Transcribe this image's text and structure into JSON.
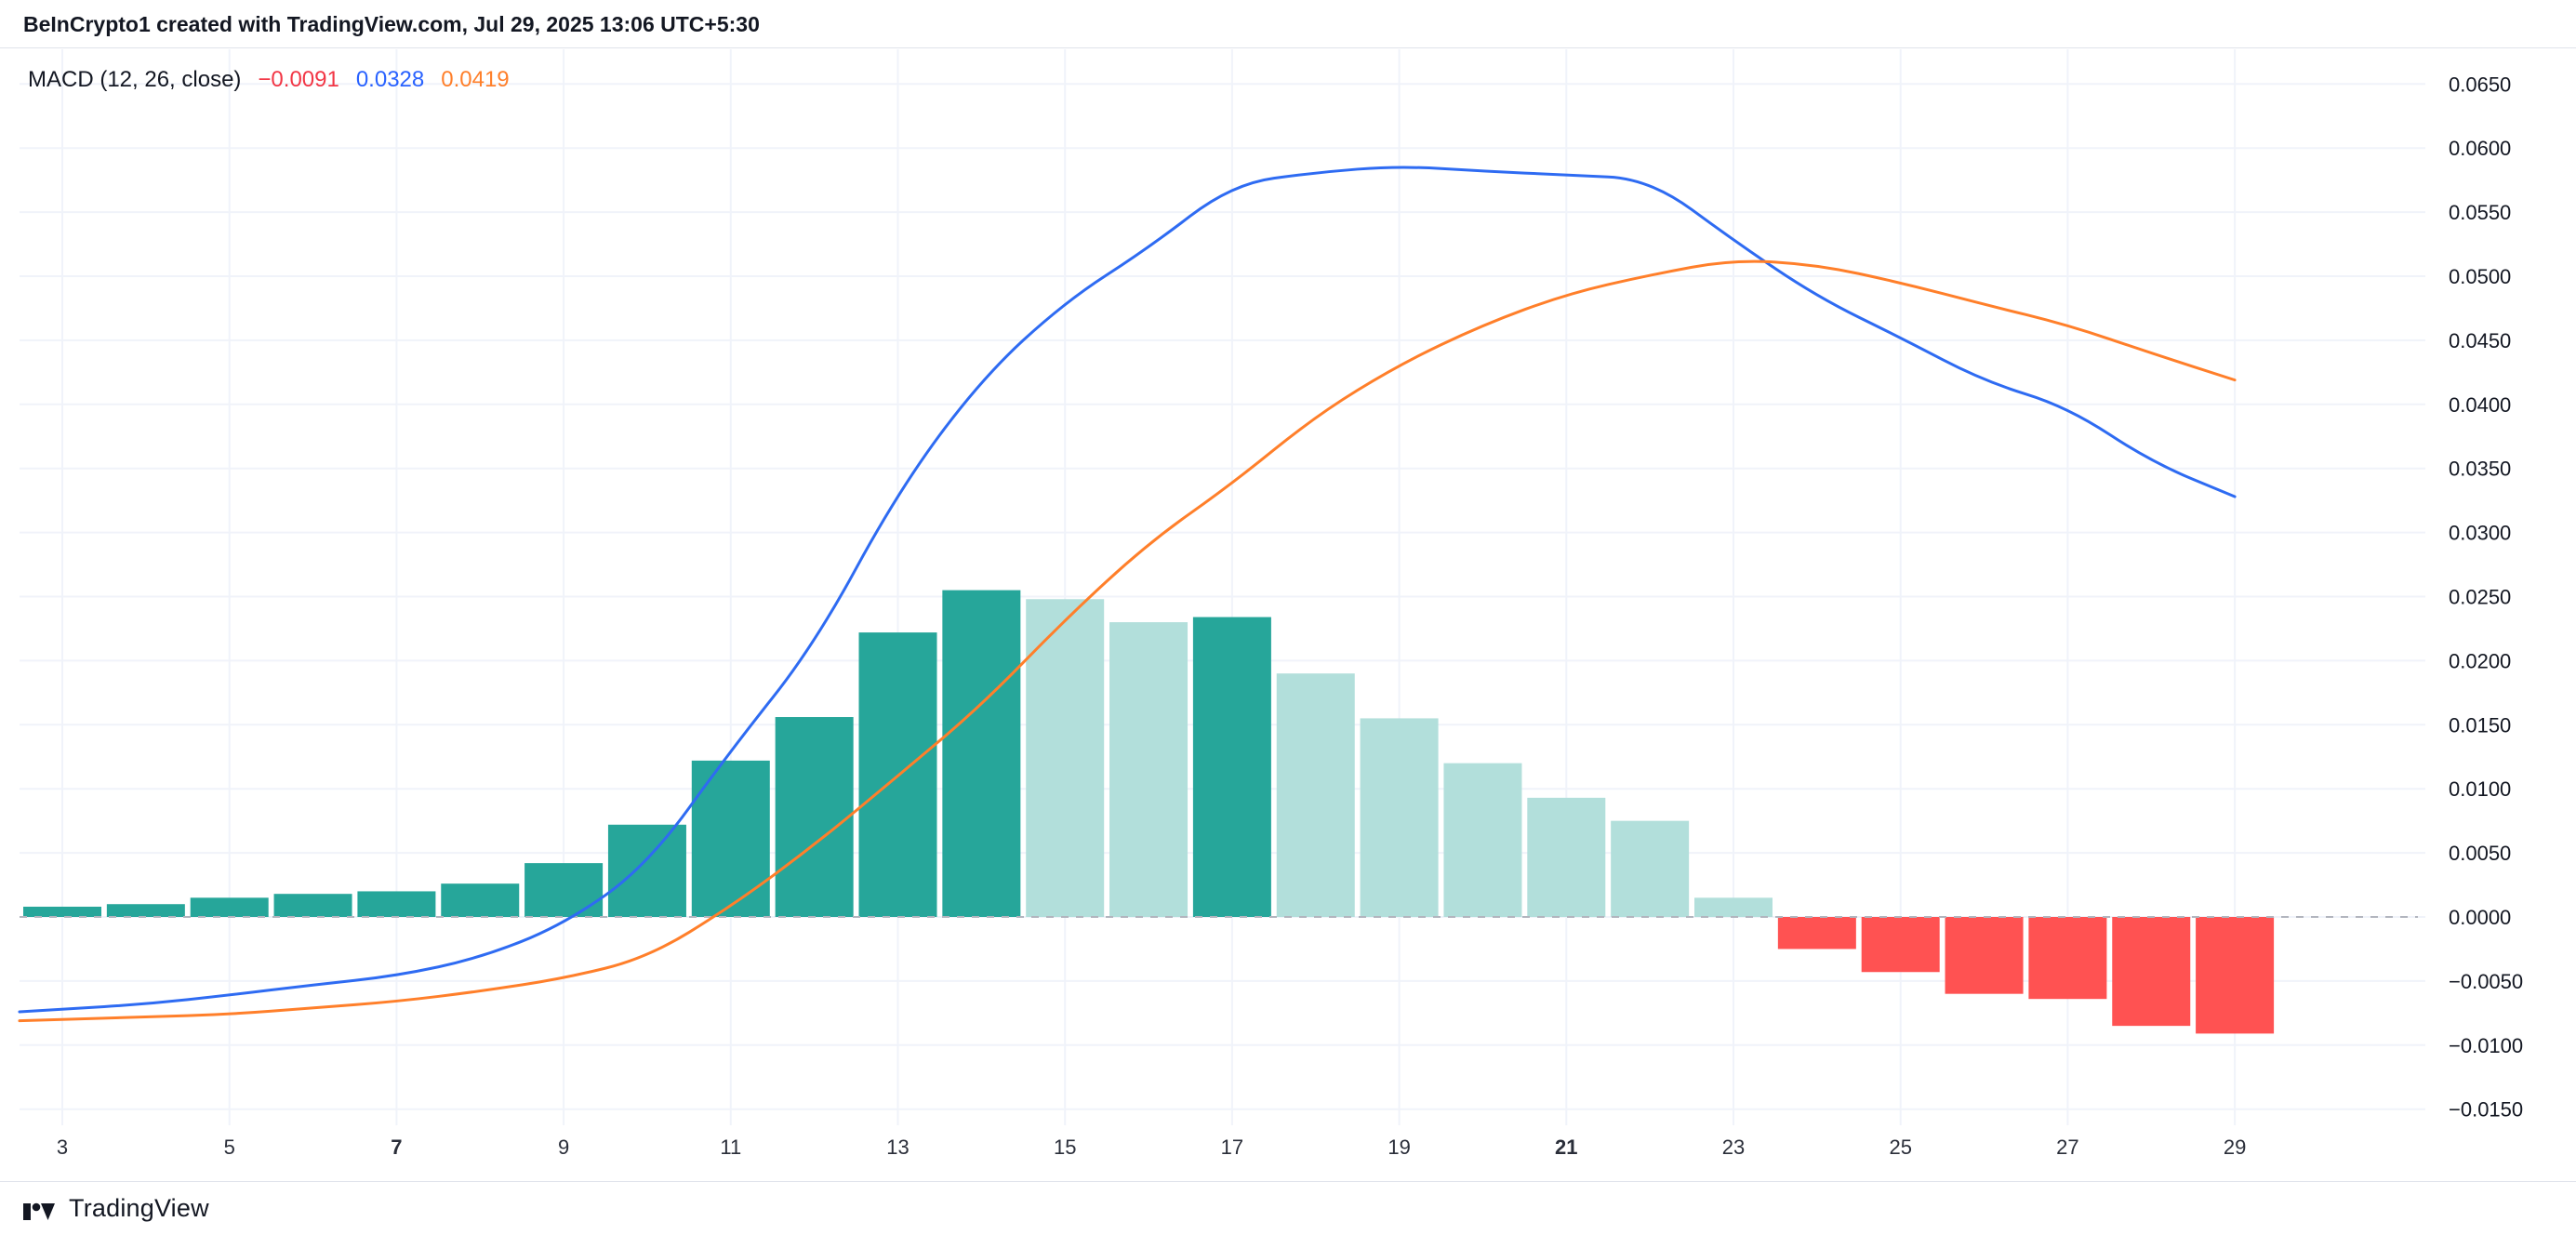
{
  "header": {
    "title": "BeInCrypto1 created with TradingView.com, Jul 29, 2025 13:06 UTC+5:30"
  },
  "legend": {
    "title": "MACD (12, 26, close)",
    "histogram_value": "−0.0091",
    "macd_value": "0.0328",
    "signal_value": "0.0419"
  },
  "footer": {
    "brand": "TradingView"
  },
  "palette": {
    "macd_line": "#2E6BF2",
    "signal_line": "#FF7F2A",
    "hist_rise_pos": "#26A69A",
    "hist_fall_pos": "#B2DFDB",
    "hist_fall_neg": "#FF5252",
    "hist_rise_neg": "#FFCDD2",
    "grid": "#F0F3FA",
    "zero_line": "#B2B5BE",
    "axis_text": "#131722",
    "x_axis_text": "#2A2E39",
    "legend_hist_value": "#F23645",
    "legend_macd_value": "#2962FF",
    "legend_signal_value": "#FF7F2A"
  },
  "chart_data": {
    "type": "bar",
    "indicator": "MACD (12, 26, close)",
    "x": [
      3,
      4,
      5,
      6,
      7,
      8,
      9,
      10,
      11,
      12,
      13,
      14,
      15,
      16,
      17,
      18,
      19,
      20,
      21,
      22,
      23,
      24,
      25,
      26,
      27,
      28,
      29
    ],
    "series": [
      {
        "name": "MACD line",
        "type": "line",
        "values": [
          -0.0072,
          -0.0068,
          -0.0061,
          -0.0053,
          -0.0046,
          -0.0032,
          -0.0006,
          0.004,
          0.013,
          0.0212,
          0.0332,
          0.042,
          0.048,
          0.0522,
          0.0572,
          0.0581,
          0.0586,
          0.0582,
          0.0579,
          0.0576,
          0.0528,
          0.0484,
          0.0452,
          0.0418,
          0.0398,
          0.0355,
          0.0328
        ]
      },
      {
        "name": "Signal line",
        "type": "line",
        "values": [
          -0.008,
          -0.0078,
          -0.0076,
          -0.0071,
          -0.0066,
          -0.0058,
          -0.0048,
          -0.0032,
          0.0008,
          0.0056,
          0.011,
          0.0165,
          0.0232,
          0.0292,
          0.0338,
          0.0391,
          0.0431,
          0.0462,
          0.0486,
          0.0501,
          0.0513,
          0.0509,
          0.0495,
          0.0478,
          0.0462,
          0.044,
          0.0419
        ]
      }
    ],
    "histogram": [
      0.0008,
      0.001,
      0.0015,
      0.0018,
      0.002,
      0.0026,
      0.0042,
      0.0072,
      0.0122,
      0.0156,
      0.0222,
      0.0255,
      0.0248,
      0.023,
      0.0234,
      0.019,
      0.0155,
      0.012,
      0.0093,
      0.0075,
      0.0015,
      -0.0025,
      -0.0043,
      -0.006,
      -0.0064,
      -0.0085,
      -0.0091
    ],
    "last_values": {
      "histogram": -0.0091,
      "macd": 0.0328,
      "signal": 0.0419
    },
    "y_ticks": [
      0.065,
      0.06,
      0.055,
      0.05,
      0.045,
      0.04,
      0.035,
      0.03,
      0.025,
      0.02,
      0.015,
      0.01,
      0.005,
      0.0,
      -0.005,
      -0.01,
      -0.015
    ],
    "x_ticks": [
      3,
      5,
      7,
      9,
      11,
      13,
      15,
      17,
      19,
      21,
      23,
      25,
      27,
      29
    ],
    "x_bold_ticks": [
      7,
      21
    ],
    "ylim": [
      -0.015,
      0.065
    ],
    "xlabel": "",
    "ylabel": "",
    "grid": true,
    "zero_line": "dashed",
    "legend_position": "top-left"
  }
}
